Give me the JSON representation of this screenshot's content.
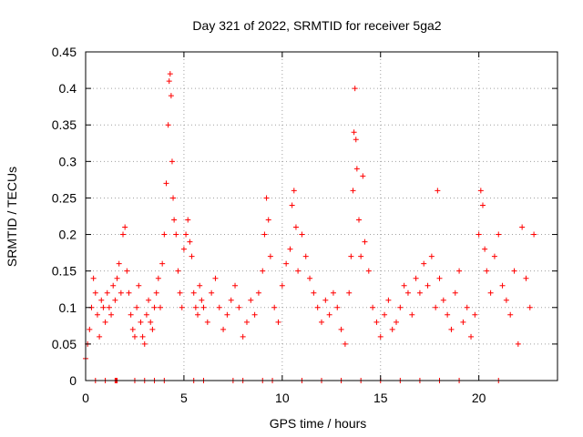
{
  "chart_data": {
    "type": "scatter",
    "title": "Day 321 of 2022, SRMTID for receiver 5ga2",
    "xlabel": "GPS time / hours",
    "ylabel": "SRMTID / TECUs",
    "xlim": [
      0,
      24
    ],
    "ylim": [
      0,
      0.45
    ],
    "xticks": [
      0,
      5,
      10,
      15,
      20
    ],
    "xtick_labels": [
      "0",
      "5",
      "10",
      "15",
      "20"
    ],
    "yticks": [
      0,
      0.05,
      0.1,
      0.15,
      0.2,
      0.25,
      0.3,
      0.35,
      0.4,
      0.45
    ],
    "ytick_labels": [
      "0",
      "0.05",
      "0.1",
      "0.15",
      "0.2",
      "0.25",
      "0.3",
      "0.35",
      "0.4",
      "0.45"
    ],
    "grid": true,
    "marker": "plus",
    "marker_color": "#ff0000",
    "series": [
      {
        "name": "SRMTID",
        "color": "#ff0000",
        "x": [
          0.0,
          0.1,
          0.2,
          0.3,
          0.4,
          0.5,
          0.6,
          0.7,
          0.8,
          0.9,
          1.0,
          1.1,
          1.2,
          1.3,
          1.4,
          1.5,
          1.6,
          1.7,
          1.8,
          1.9,
          2.0,
          2.1,
          2.2,
          2.3,
          2.4,
          2.5,
          2.6,
          2.7,
          2.8,
          2.9,
          3.0,
          3.1,
          3.2,
          3.3,
          3.4,
          3.5,
          3.6,
          3.7,
          3.8,
          3.9,
          4.0,
          4.1,
          4.2,
          4.25,
          4.3,
          4.35,
          4.4,
          4.45,
          4.5,
          4.6,
          4.7,
          4.8,
          4.9,
          5.0,
          5.1,
          5.2,
          5.3,
          5.4,
          5.5,
          5.6,
          5.7,
          5.8,
          5.9,
          6.0,
          6.2,
          6.4,
          6.6,
          6.8,
          7.0,
          7.2,
          7.4,
          7.6,
          7.8,
          8.0,
          8.2,
          8.4,
          8.6,
          8.8,
          9.0,
          9.1,
          9.2,
          9.3,
          9.4,
          9.6,
          9.8,
          10.0,
          10.2,
          10.4,
          10.5,
          10.6,
          10.7,
          10.8,
          11.0,
          11.2,
          11.4,
          11.6,
          11.8,
          12.0,
          12.2,
          12.4,
          12.6,
          12.8,
          13.0,
          13.2,
          13.4,
          13.5,
          13.6,
          13.65,
          13.7,
          13.75,
          13.8,
          13.9,
          14.0,
          14.1,
          14.2,
          14.4,
          14.6,
          14.8,
          15.0,
          15.2,
          15.4,
          15.6,
          15.8,
          16.0,
          16.2,
          16.4,
          16.6,
          16.8,
          17.0,
          17.2,
          17.4,
          17.6,
          17.8,
          17.9,
          18.0,
          18.2,
          18.4,
          18.6,
          18.8,
          19.0,
          19.2,
          19.4,
          19.6,
          19.8,
          20.0,
          20.1,
          20.2,
          20.3,
          20.4,
          20.6,
          20.8,
          21.0,
          21.2,
          21.4,
          21.6,
          21.8,
          22.0,
          22.2,
          22.4,
          22.6,
          22.8
        ],
        "y": [
          0.03,
          0.05,
          0.07,
          0.1,
          0.14,
          0.12,
          0.09,
          0.06,
          0.11,
          0.1,
          0.08,
          0.12,
          0.1,
          0.09,
          0.13,
          0.11,
          0.14,
          0.16,
          0.12,
          0.2,
          0.21,
          0.15,
          0.12,
          0.09,
          0.07,
          0.06,
          0.1,
          0.13,
          0.08,
          0.06,
          0.05,
          0.09,
          0.11,
          0.08,
          0.07,
          0.1,
          0.12,
          0.14,
          0.1,
          0.16,
          0.2,
          0.27,
          0.35,
          0.41,
          0.42,
          0.39,
          0.3,
          0.25,
          0.22,
          0.2,
          0.15,
          0.12,
          0.1,
          0.18,
          0.2,
          0.22,
          0.19,
          0.17,
          0.12,
          0.1,
          0.09,
          0.13,
          0.11,
          0.1,
          0.08,
          0.12,
          0.14,
          0.1,
          0.07,
          0.09,
          0.11,
          0.13,
          0.1,
          0.06,
          0.08,
          0.11,
          0.09,
          0.12,
          0.15,
          0.2,
          0.25,
          0.22,
          0.17,
          0.1,
          0.08,
          0.13,
          0.16,
          0.18,
          0.24,
          0.26,
          0.21,
          0.15,
          0.2,
          0.17,
          0.14,
          0.12,
          0.1,
          0.08,
          0.11,
          0.09,
          0.12,
          0.1,
          0.07,
          0.05,
          0.12,
          0.17,
          0.26,
          0.34,
          0.4,
          0.33,
          0.29,
          0.22,
          0.17,
          0.28,
          0.19,
          0.15,
          0.1,
          0.08,
          0.06,
          0.09,
          0.11,
          0.07,
          0.08,
          0.1,
          0.13,
          0.12,
          0.09,
          0.14,
          0.12,
          0.16,
          0.13,
          0.17,
          0.1,
          0.26,
          0.14,
          0.11,
          0.09,
          0.07,
          0.12,
          0.15,
          0.08,
          0.1,
          0.06,
          0.09,
          0.2,
          0.26,
          0.24,
          0.18,
          0.15,
          0.12,
          0.17,
          0.2,
          0.13,
          0.11,
          0.09,
          0.15,
          0.05,
          0.21,
          0.14,
          0.1,
          0.2
        ],
        "zero_marks_x": [
          0.5,
          1.0,
          1.5,
          1.55,
          1.6,
          2.5,
          3.0,
          3.5,
          4.0,
          5.5,
          6.0,
          7.5,
          8.0,
          9.0,
          9.5,
          11.0,
          12.0,
          13.0,
          14.0,
          15.0,
          16.0,
          17.0,
          18.0,
          19.0,
          21.0
        ]
      }
    ]
  }
}
